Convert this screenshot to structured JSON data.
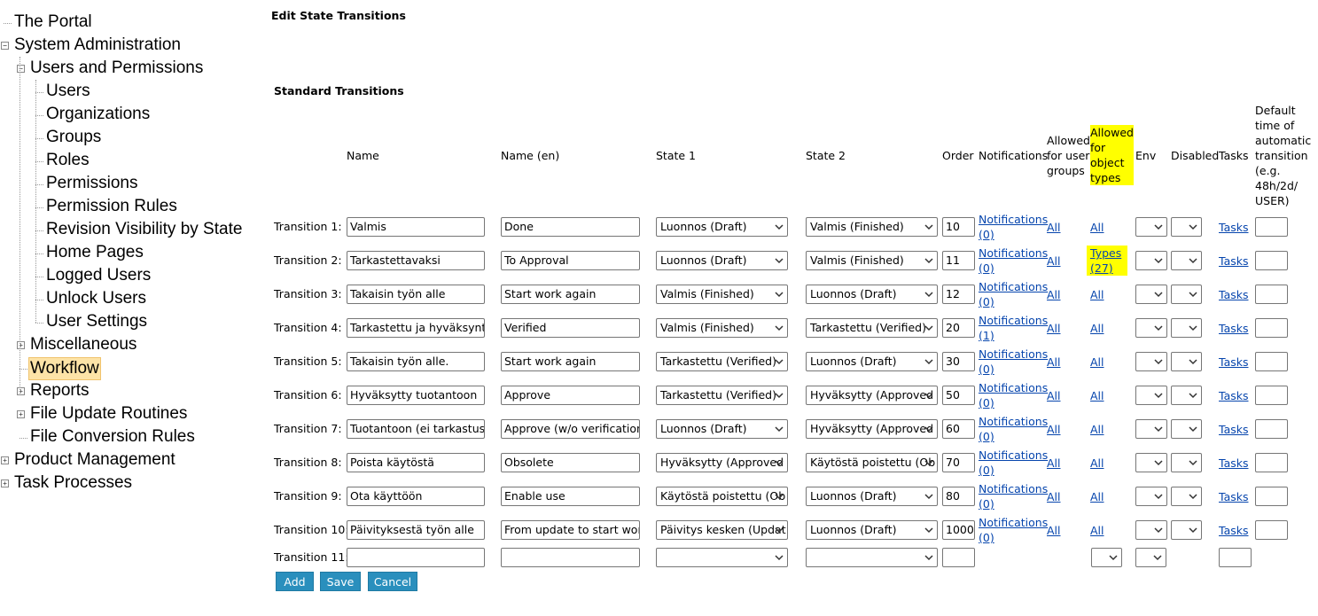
{
  "tree": [
    {
      "label": "The Portal",
      "depth": 0
    },
    {
      "label": "System Administration",
      "depth": 0,
      "expanded": true
    },
    {
      "label": "Users and Permissions",
      "depth": 1,
      "expanded": true
    },
    {
      "label": "Users",
      "depth": 2
    },
    {
      "label": "Organizations",
      "depth": 2
    },
    {
      "label": "Groups",
      "depth": 2
    },
    {
      "label": "Roles",
      "depth": 2
    },
    {
      "label": "Permissions",
      "depth": 2
    },
    {
      "label": "Permission Rules",
      "depth": 2
    },
    {
      "label": "Revision Visibility by State",
      "depth": 2
    },
    {
      "label": "Home Pages",
      "depth": 2
    },
    {
      "label": "Logged Users",
      "depth": 2
    },
    {
      "label": "Unlock Users",
      "depth": 2
    },
    {
      "label": "User Settings",
      "depth": 2
    },
    {
      "label": "Miscellaneous",
      "depth": 1,
      "expanded": false
    },
    {
      "label": "Workflow",
      "depth": 1,
      "selected": true
    },
    {
      "label": "Reports",
      "depth": 1,
      "expanded": false
    },
    {
      "label": "File Update Routines",
      "depth": 1,
      "expanded": false
    },
    {
      "label": "File Conversion Rules",
      "depth": 1
    },
    {
      "label": "Product Management",
      "depth": 0,
      "expanded": false
    },
    {
      "label": "Task Processes",
      "depth": 0,
      "expanded": false
    }
  ],
  "header": {
    "title": "Edit State Transitions"
  },
  "section": {
    "title": "Standard Transitions"
  },
  "table": {
    "columns": [
      "Name",
      "Name (en)",
      "State 1",
      "State 2",
      "Order",
      "Notifications",
      "Allowed for user groups",
      "Allowed for object types",
      "Env",
      "Disabled",
      "Tasks",
      "Default time of automatic transition (e.g. 48h/2d/ USER)"
    ],
    "rows": [
      {
        "label": "Transition 1:",
        "name": "Valmis",
        "name_en": "Done",
        "state1": "Luonnos (Draft)",
        "state2": "Valmis (Finished)",
        "order": "10",
        "notifications": "Notifications (0)",
        "user_groups": "All",
        "object_types": "All",
        "tasks": "Tasks"
      },
      {
        "label": "Transition 2:",
        "name": "Tarkastettavaksi",
        "name_en": "To Approval",
        "state1": "Luonnos (Draft)",
        "state2": "Valmis (Finished)",
        "order": "11",
        "notifications": "Notifications (0)",
        "user_groups": "All",
        "object_types": "Types (27)",
        "tasks": "Tasks"
      },
      {
        "label": "Transition 3:",
        "name": "Takaisin työn alle",
        "name_en": "Start work again",
        "state1": "Valmis (Finished)",
        "state2": "Luonnos (Draft)",
        "order": "12",
        "notifications": "Notifications (0)",
        "user_groups": "All",
        "object_types": "All",
        "tasks": "Tasks"
      },
      {
        "label": "Transition 4:",
        "name": "Tarkastettu ja hyväksyntää",
        "name_en": "Verified",
        "state1": "Valmis (Finished)",
        "state2": "Tarkastettu (Verified)",
        "order": "20",
        "notifications": "Notifications (1)",
        "user_groups": "All",
        "object_types": "All",
        "tasks": "Tasks"
      },
      {
        "label": "Transition 5:",
        "name": "Takaisin työn alle.",
        "name_en": "Start work again",
        "state1": "Tarkastettu (Verified)",
        "state2": "Luonnos (Draft)",
        "order": "30",
        "notifications": "Notifications (0)",
        "user_groups": "All",
        "object_types": "All",
        "tasks": "Tasks"
      },
      {
        "label": "Transition 6:",
        "name": "Hyväksytty tuotantoon",
        "name_en": "Approve",
        "state1": "Tarkastettu (Verified)",
        "state2": "Hyväksytty (Approved",
        "order": "50",
        "notifications": "Notifications (0)",
        "user_groups": "All",
        "object_types": "All",
        "tasks": "Tasks"
      },
      {
        "label": "Transition 7:",
        "name": "Tuotantoon (ei tarkastusta",
        "name_en": "Approve (w/o verification)",
        "state1": "Luonnos (Draft)",
        "state2": "Hyväksytty (Approved",
        "order": "60",
        "notifications": "Notifications (0)",
        "user_groups": "All",
        "object_types": "All",
        "tasks": "Tasks"
      },
      {
        "label": "Transition 8:",
        "name": "Poista käytöstä",
        "name_en": "Obsolete",
        "state1": "Hyväksytty (Approved",
        "state2": "Käytöstä poistettu (Ob",
        "order": "70",
        "notifications": "Notifications (0)",
        "user_groups": "All",
        "object_types": "All",
        "tasks": "Tasks"
      },
      {
        "label": "Transition 9:",
        "name": "Ota käyttöön",
        "name_en": "Enable use",
        "state1": "Käytöstä poistettu (Ob",
        "state2": "Luonnos (Draft)",
        "order": "80",
        "notifications": "Notifications (0)",
        "user_groups": "All",
        "object_types": "All",
        "tasks": "Tasks"
      },
      {
        "label": "Transition 10:",
        "name": "Päivityksestä työn alle",
        "name_en": "From update to start work",
        "state1": "Päivitys kesken (Updat",
        "state2": "Luonnos (Draft)",
        "order": "1000",
        "notifications": "Notifications (0)",
        "user_groups": "All",
        "object_types": "All",
        "tasks": "Tasks"
      }
    ],
    "new_row": {
      "label": "Transition 11:"
    }
  },
  "buttons": [
    "Add",
    "Save",
    "Cancel"
  ]
}
